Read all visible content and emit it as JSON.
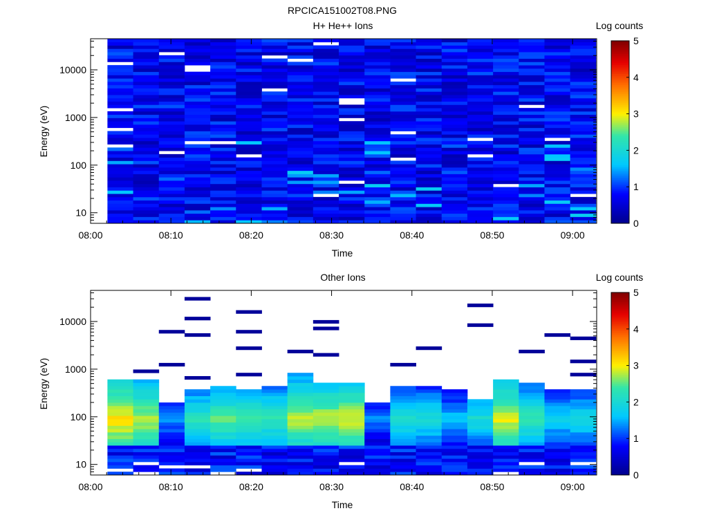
{
  "title": "RPCICA151002T08.PNG",
  "colorbar": {
    "label": "Log counts",
    "ticks": [
      "0",
      "1",
      "2",
      "3",
      "4",
      "5"
    ],
    "range": [
      0,
      5
    ]
  },
  "chart_data": [
    {
      "type": "heatmap",
      "title": "H+ He++ Ions",
      "xlabel": "Time",
      "ylabel": "Energy (eV)",
      "x_ticks": [
        "08:00",
        "08:10",
        "08:20",
        "08:30",
        "08:40",
        "08:50",
        "09:00"
      ],
      "y_ticks": [
        "10",
        "100",
        "1000",
        "10000"
      ],
      "y_scale": "log",
      "x_range": [
        "08:00",
        "09:03"
      ],
      "y_range": [
        6,
        45000
      ],
      "columns": 19,
      "column_start": "08:02",
      "column_step_min": 3.2,
      "log_counts_typical": [
        0.3,
        1.0
      ],
      "description_level": "mostly low counts (dark to medium blue) across all energies"
    },
    {
      "type": "heatmap",
      "title": "Other Ions",
      "xlabel": "Time",
      "ylabel": "Energy (eV)",
      "x_ticks": [
        "08:00",
        "08:10",
        "08:20",
        "08:30",
        "08:40",
        "08:50",
        "09:00"
      ],
      "y_ticks": [
        "10",
        "100",
        "1000",
        "10000"
      ],
      "y_scale": "log",
      "x_range": [
        "08:00",
        "09:03"
      ],
      "y_range": [
        6,
        45000
      ],
      "columns": 19,
      "column_start": "08:02",
      "column_step_min": 3.2,
      "column_peak_log_counts": [
        3.3,
        3.0,
        1.6,
        2.4,
        2.7,
        2.6,
        2.5,
        3.0,
        3.0,
        3.1,
        1.5,
        2.3,
        2.2,
        1.8,
        2.2,
        3.1,
        2.5,
        2.0,
        2.1
      ],
      "column_top_energy_eV": [
        580,
        650,
        200,
        350,
        450,
        400,
        420,
        800,
        500,
        560,
        200,
        420,
        420,
        350,
        230,
        600,
        500,
        350,
        380
      ]
    }
  ]
}
